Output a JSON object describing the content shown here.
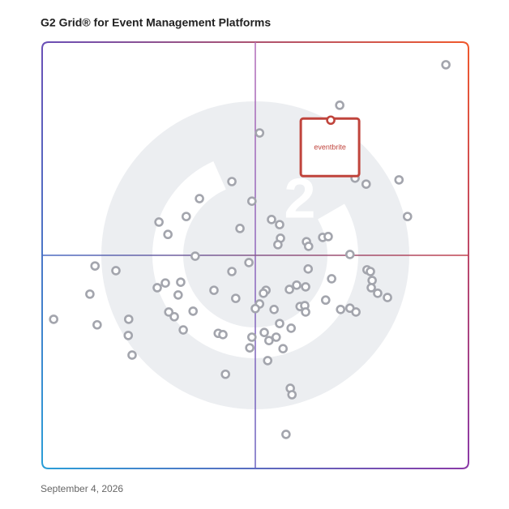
{
  "chart_data": {
    "type": "scatter",
    "title": "G2 Grid® for Event Management Platforms",
    "footnote": "September 4, 2026",
    "xlim": [
      0,
      100
    ],
    "ylim": [
      0,
      100
    ],
    "series": [
      {
        "color": "#a3a5ad",
        "x": [
          94.7,
          69.8,
          51.0,
          73.4,
          76.0,
          83.7,
          44.5,
          36.9,
          49.2,
          85.7,
          33.8,
          27.4,
          53.8,
          55.7,
          46.4,
          29.5,
          55.9,
          55.3,
          62.0,
          62.5,
          65.8,
          67.1,
          35.9,
          72.2,
          48.5,
          12.4,
          17.3,
          44.5,
          62.4,
          76.2,
          77.0,
          77.4,
          67.9,
          32.5,
          28.9,
          27.0,
          40.3,
          59.7,
          61.8,
          58.0,
          52.5,
          51.9,
          77.2,
          78.7,
          81.0,
          11.2,
          31.9,
          45.4,
          66.5,
          60.5,
          61.6,
          61.8,
          51.0,
          50.0,
          54.4,
          70.0,
          72.2,
          73.6,
          35.4,
          29.7,
          31.0,
          2.7,
          20.3,
          55.7,
          12.9,
          58.4,
          33.1,
          41.3,
          42.4,
          52.1,
          54.9,
          49.2,
          20.2,
          53.2,
          56.5,
          48.7,
          21.1,
          52.9,
          43.0,
          58.2,
          58.6,
          57.2
        ],
        "values": [
          94.7,
          85.2,
          78.7,
          68.1,
          66.7,
          67.7,
          67.3,
          63.3,
          62.7,
          59.1,
          59.1,
          57.8,
          58.4,
          57.2,
          56.3,
          54.9,
          54.0,
          52.5,
          53.2,
          52.1,
          54.2,
          54.4,
          49.8,
          50.2,
          48.3,
          47.5,
          46.4,
          46.2,
          46.8,
          46.6,
          46.2,
          44.1,
          44.5,
          43.7,
          43.5,
          42.4,
          41.8,
          43.0,
          42.6,
          42.0,
          41.8,
          41.1,
          42.4,
          41.1,
          40.1,
          40.9,
          40.7,
          39.9,
          39.5,
          38.0,
          38.2,
          36.7,
          38.6,
          37.5,
          37.3,
          37.3,
          37.6,
          36.7,
          36.9,
          36.7,
          35.6,
          35.0,
          35.0,
          34.0,
          33.7,
          32.9,
          32.5,
          31.7,
          31.4,
          31.9,
          30.8,
          30.8,
          31.2,
          30.0,
          28.1,
          28.3,
          26.6,
          25.3,
          22.1,
          18.8,
          17.3,
          8.0
        ]
      },
      {
        "name": "eventbrite",
        "color": "#c0443c",
        "x": [
          67.7
        ],
        "values": [
          81.7
        ]
      }
    ]
  }
}
